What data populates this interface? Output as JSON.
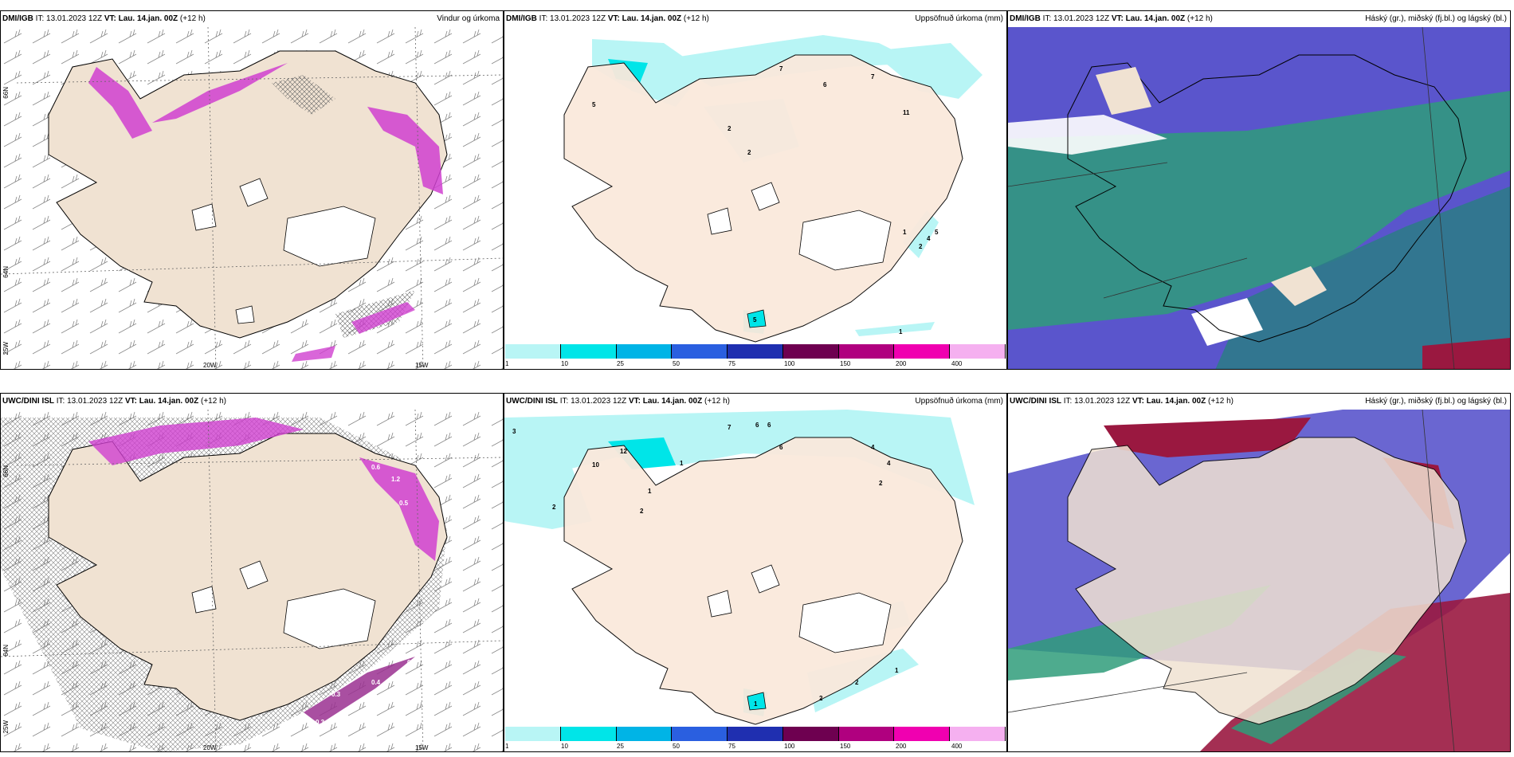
{
  "panels": [
    {
      "id": "dmi-wind",
      "model": "DMI/IGB",
      "it_label": "IT:",
      "init_time": "13.01.2023 12Z",
      "vt_label": "VT:",
      "valid_time": "Lau. 14.jan. 00Z",
      "lead": "(+12 h)",
      "title": "Vindur og úrkoma",
      "lat_labels": [
        "66N",
        "64N",
        "25W"
      ],
      "lon_labels": [
        "20W",
        "15W"
      ]
    },
    {
      "id": "dmi-precip",
      "model": "DMI/IGB",
      "it_label": "IT:",
      "init_time": "13.01.2023 12Z",
      "vt_label": "VT:",
      "valid_time": "Lau. 14.jan. 00Z",
      "lead": "(+12 h)",
      "title": "Uppsöfnuð úrkoma (mm)",
      "values": [
        "7",
        "6",
        "7",
        "5",
        "2",
        "2",
        "11",
        "1",
        "2",
        "4",
        "5",
        "5",
        "1"
      ]
    },
    {
      "id": "dmi-cloud",
      "model": "DMI/IGB",
      "it_label": "IT:",
      "init_time": "13.01.2023 12Z",
      "vt_label": "VT:",
      "valid_time": "Lau. 14.jan. 00Z",
      "lead": "(+12 h)",
      "title": "Háský (gr.), miðský (fj.bl.) og lágský (bl.)"
    },
    {
      "id": "uwc-wind",
      "model": "UWC/DINI ISL",
      "it_label": "IT:",
      "init_time": "13.01.2023 12Z",
      "vt_label": "VT:",
      "valid_time": "Lau. 14.jan. 00Z",
      "lead": "(+12 h)",
      "title": "",
      "lat_labels": [
        "66N",
        "64N",
        "25W"
      ],
      "lon_labels": [
        "20W",
        "15W"
      ],
      "values": [
        "0.6",
        "1.2",
        "0.5",
        "0.3",
        "0.4",
        "0.3",
        "0.3"
      ]
    },
    {
      "id": "uwc-precip",
      "model": "UWC/DINI ISL",
      "it_label": "IT:",
      "init_time": "13.01.2023 12Z",
      "vt_label": "VT:",
      "valid_time": "Lau. 14.jan. 00Z",
      "lead": "(+12 h)",
      "title": "Uppsöfnuð úrkoma (mm)",
      "values": [
        "3",
        "7",
        "6",
        "6",
        "6",
        "12",
        "10",
        "1",
        "1",
        "2",
        "2",
        "4",
        "4",
        "2",
        "1",
        "2",
        "2",
        "1"
      ]
    },
    {
      "id": "uwc-cloud",
      "model": "UWC/DINI ISL",
      "it_label": "IT:",
      "init_time": "13.01.2023 12Z",
      "vt_label": "VT:",
      "valid_time": "Lau. 14.jan. 00Z",
      "lead": "(+12 h)",
      "title": "Háský (gr.), miðský (fj.bl.) og lágský (bl.)"
    }
  ],
  "colorbar": {
    "labels": [
      "1",
      "10",
      "25",
      "50",
      "75",
      "100",
      "150",
      "200",
      "400"
    ],
    "colors": [
      "#b8f5f5",
      "#00e5e8",
      "#00b4e6",
      "#2a5fe0",
      "#1f2fb0",
      "#6e0050",
      "#b0007f",
      "#f000b0",
      "#f5b0f0"
    ]
  },
  "colors": {
    "land": "#f0e2d2",
    "glacier": "#ffffff",
    "sea": "#ffffff",
    "precip_light": "#b8f5f5",
    "precip_mid": "#00e5e8",
    "precip_wind": "#d040d0",
    "cloud_high": "#2f9c7a",
    "cloud_mid": "#5a55cc",
    "cloud_low": "#9a1840",
    "cloud_sea": "#4a4ac8"
  }
}
